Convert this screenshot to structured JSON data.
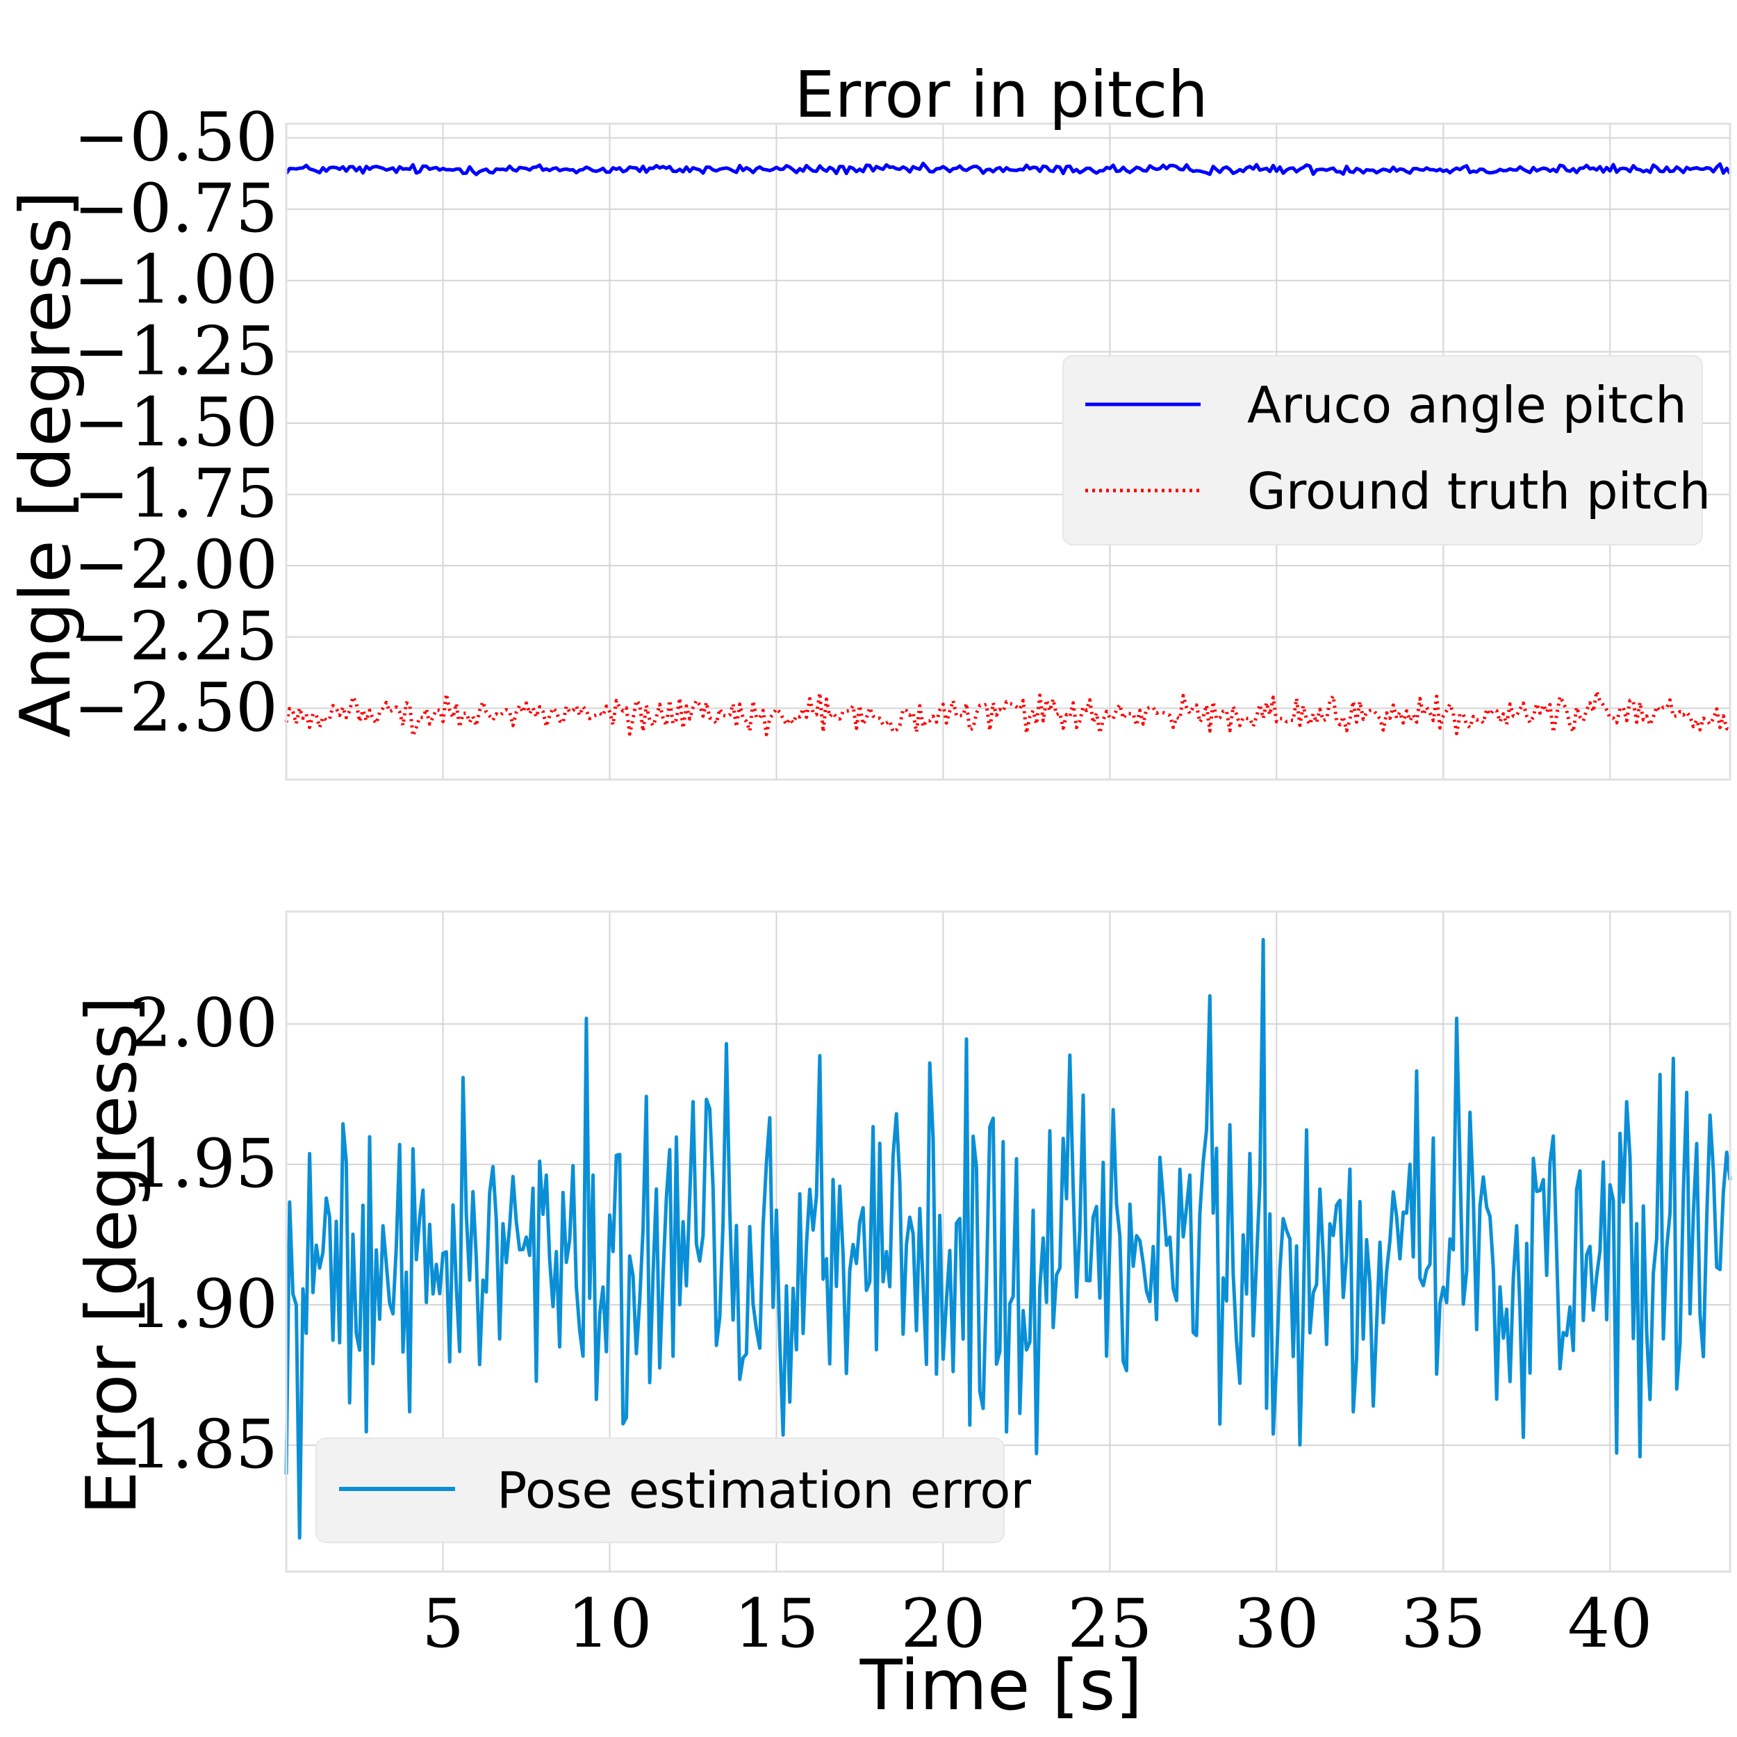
{
  "chart_data": [
    {
      "type": "line",
      "title": "Error in pitch",
      "xlabel": "",
      "ylabel": "Angle [degress]",
      "xlim": [
        0.3,
        43.6
      ],
      "ylim": [
        -2.75,
        -0.45
      ],
      "xticks": [
        5,
        10,
        15,
        20,
        25,
        30,
        35,
        40
      ],
      "xtick_labels_visible": false,
      "yticks": [
        -0.5,
        -0.75,
        -1.0,
        -1.25,
        -1.5,
        -1.75,
        -2.0,
        -2.25,
        -2.5
      ],
      "ytick_labels": [
        "−0.50",
        "−0.75",
        "−1.00",
        "−1.25",
        "−1.50",
        "−1.75",
        "−2.00",
        "−2.25",
        "−2.50"
      ],
      "grid": true,
      "legend": {
        "location": "center-right",
        "entries": [
          "Aruco angle pitch",
          "Ground truth pitch"
        ]
      },
      "series": [
        {
          "name": "Aruco angle pitch",
          "color": "#0000ff",
          "style": "solid",
          "x_start": 0.3,
          "x_end": 43.6,
          "samples": 434,
          "mean": -0.61,
          "noise_amplitude": 0.008
        },
        {
          "name": "Ground truth pitch",
          "color": "#ff0000",
          "style": "dotted",
          "x_start": 0.3,
          "x_end": 43.6,
          "samples": 434,
          "mean": -2.52,
          "noise_amplitude": 0.03
        }
      ]
    },
    {
      "type": "line",
      "title": "",
      "xlabel": "Time [s]",
      "ylabel": "Error [degress]",
      "xlim": [
        0.3,
        43.6
      ],
      "ylim": [
        1.805,
        2.04
      ],
      "xticks": [
        5,
        10,
        15,
        20,
        25,
        30,
        35,
        40
      ],
      "xtick_labels": [
        "5",
        "10",
        "15",
        "20",
        "25",
        "30",
        "35",
        "40"
      ],
      "yticks": [
        1.85,
        1.9,
        1.95,
        2.0
      ],
      "ytick_labels": [
        "1.85",
        "1.90",
        "1.95",
        "2.00"
      ],
      "grid": true,
      "legend": {
        "location": "lower-left",
        "entries": [
          "Pose estimation error"
        ]
      },
      "series": [
        {
          "name": "Pose estimation error",
          "color": "#0a8fd6",
          "style": "solid",
          "x_start": 0.3,
          "x_end": 43.6,
          "samples": 434,
          "mean": 1.92,
          "noise_amplitude": 0.03,
          "notable_points": [
            {
              "x": 0.75,
              "y": 1.817
            },
            {
              "x": 9.3,
              "y": 2.002
            },
            {
              "x": 22.8,
              "y": 1.847
            },
            {
              "x": 28.0,
              "y": 2.01
            },
            {
              "x": 29.6,
              "y": 2.03
            },
            {
              "x": 35.4,
              "y": 2.002
            },
            {
              "x": 41.5,
              "y": 1.982
            }
          ]
        }
      ]
    }
  ]
}
